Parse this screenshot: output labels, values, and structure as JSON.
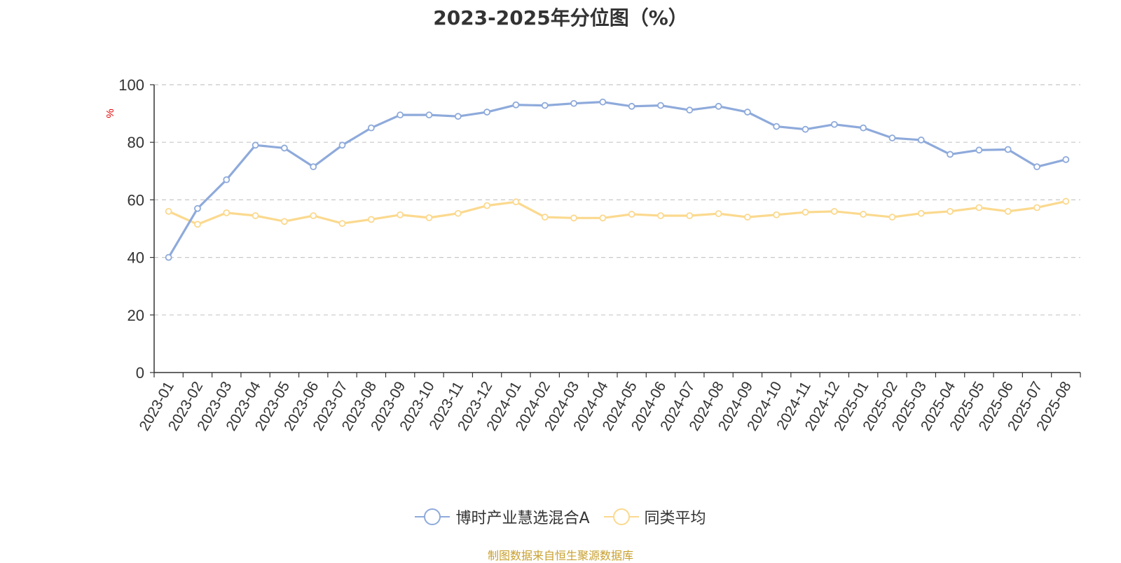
{
  "chart_data": {
    "type": "line",
    "title": "2023-2025年分位图（%）",
    "ylabel": "%",
    "ylim": [
      0,
      100
    ],
    "yticks": [
      0,
      20,
      40,
      60,
      80,
      100
    ],
    "grid": true,
    "legend_position": "bottom",
    "categories": [
      "2023-01",
      "2023-02",
      "2023-03",
      "2023-04",
      "2023-05",
      "2023-06",
      "2023-07",
      "2023-08",
      "2023-09",
      "2023-10",
      "2023-11",
      "2023-12",
      "2024-01",
      "2024-02",
      "2024-03",
      "2024-04",
      "2024-05",
      "2024-06",
      "2024-07",
      "2024-08",
      "2024-09",
      "2024-10",
      "2024-11",
      "2024-12",
      "2025-01",
      "2025-02",
      "2025-03",
      "2025-04",
      "2025-05",
      "2025-06",
      "2025-07",
      "2025-08"
    ],
    "series": [
      {
        "name": "博时产业慧选混合A",
        "color": "#8eaadb",
        "values": [
          40.0,
          57.0,
          67.0,
          79.0,
          78.0,
          71.5,
          79.0,
          85.0,
          89.5,
          89.5,
          89.0,
          90.5,
          93.0,
          92.8,
          93.5,
          94.0,
          92.5,
          92.8,
          91.2,
          92.5,
          90.5,
          85.5,
          84.5,
          86.2,
          85.0,
          81.5,
          80.8,
          75.8,
          77.3,
          77.5,
          71.5,
          74.0
        ]
      },
      {
        "name": "同类平均",
        "color": "#fbd98e",
        "values": [
          56.0,
          51.5,
          55.5,
          54.5,
          52.5,
          54.5,
          51.8,
          53.2,
          54.8,
          53.8,
          55.3,
          58.0,
          59.3,
          54.0,
          53.7,
          53.7,
          55.0,
          54.5,
          54.5,
          55.2,
          54.0,
          54.8,
          55.7,
          56.0,
          55.0,
          54.0,
          55.3,
          56.0,
          57.3,
          56.0,
          57.3,
          59.5
        ]
      }
    ]
  },
  "source_note": "制图数据来自恒生聚源数据库"
}
